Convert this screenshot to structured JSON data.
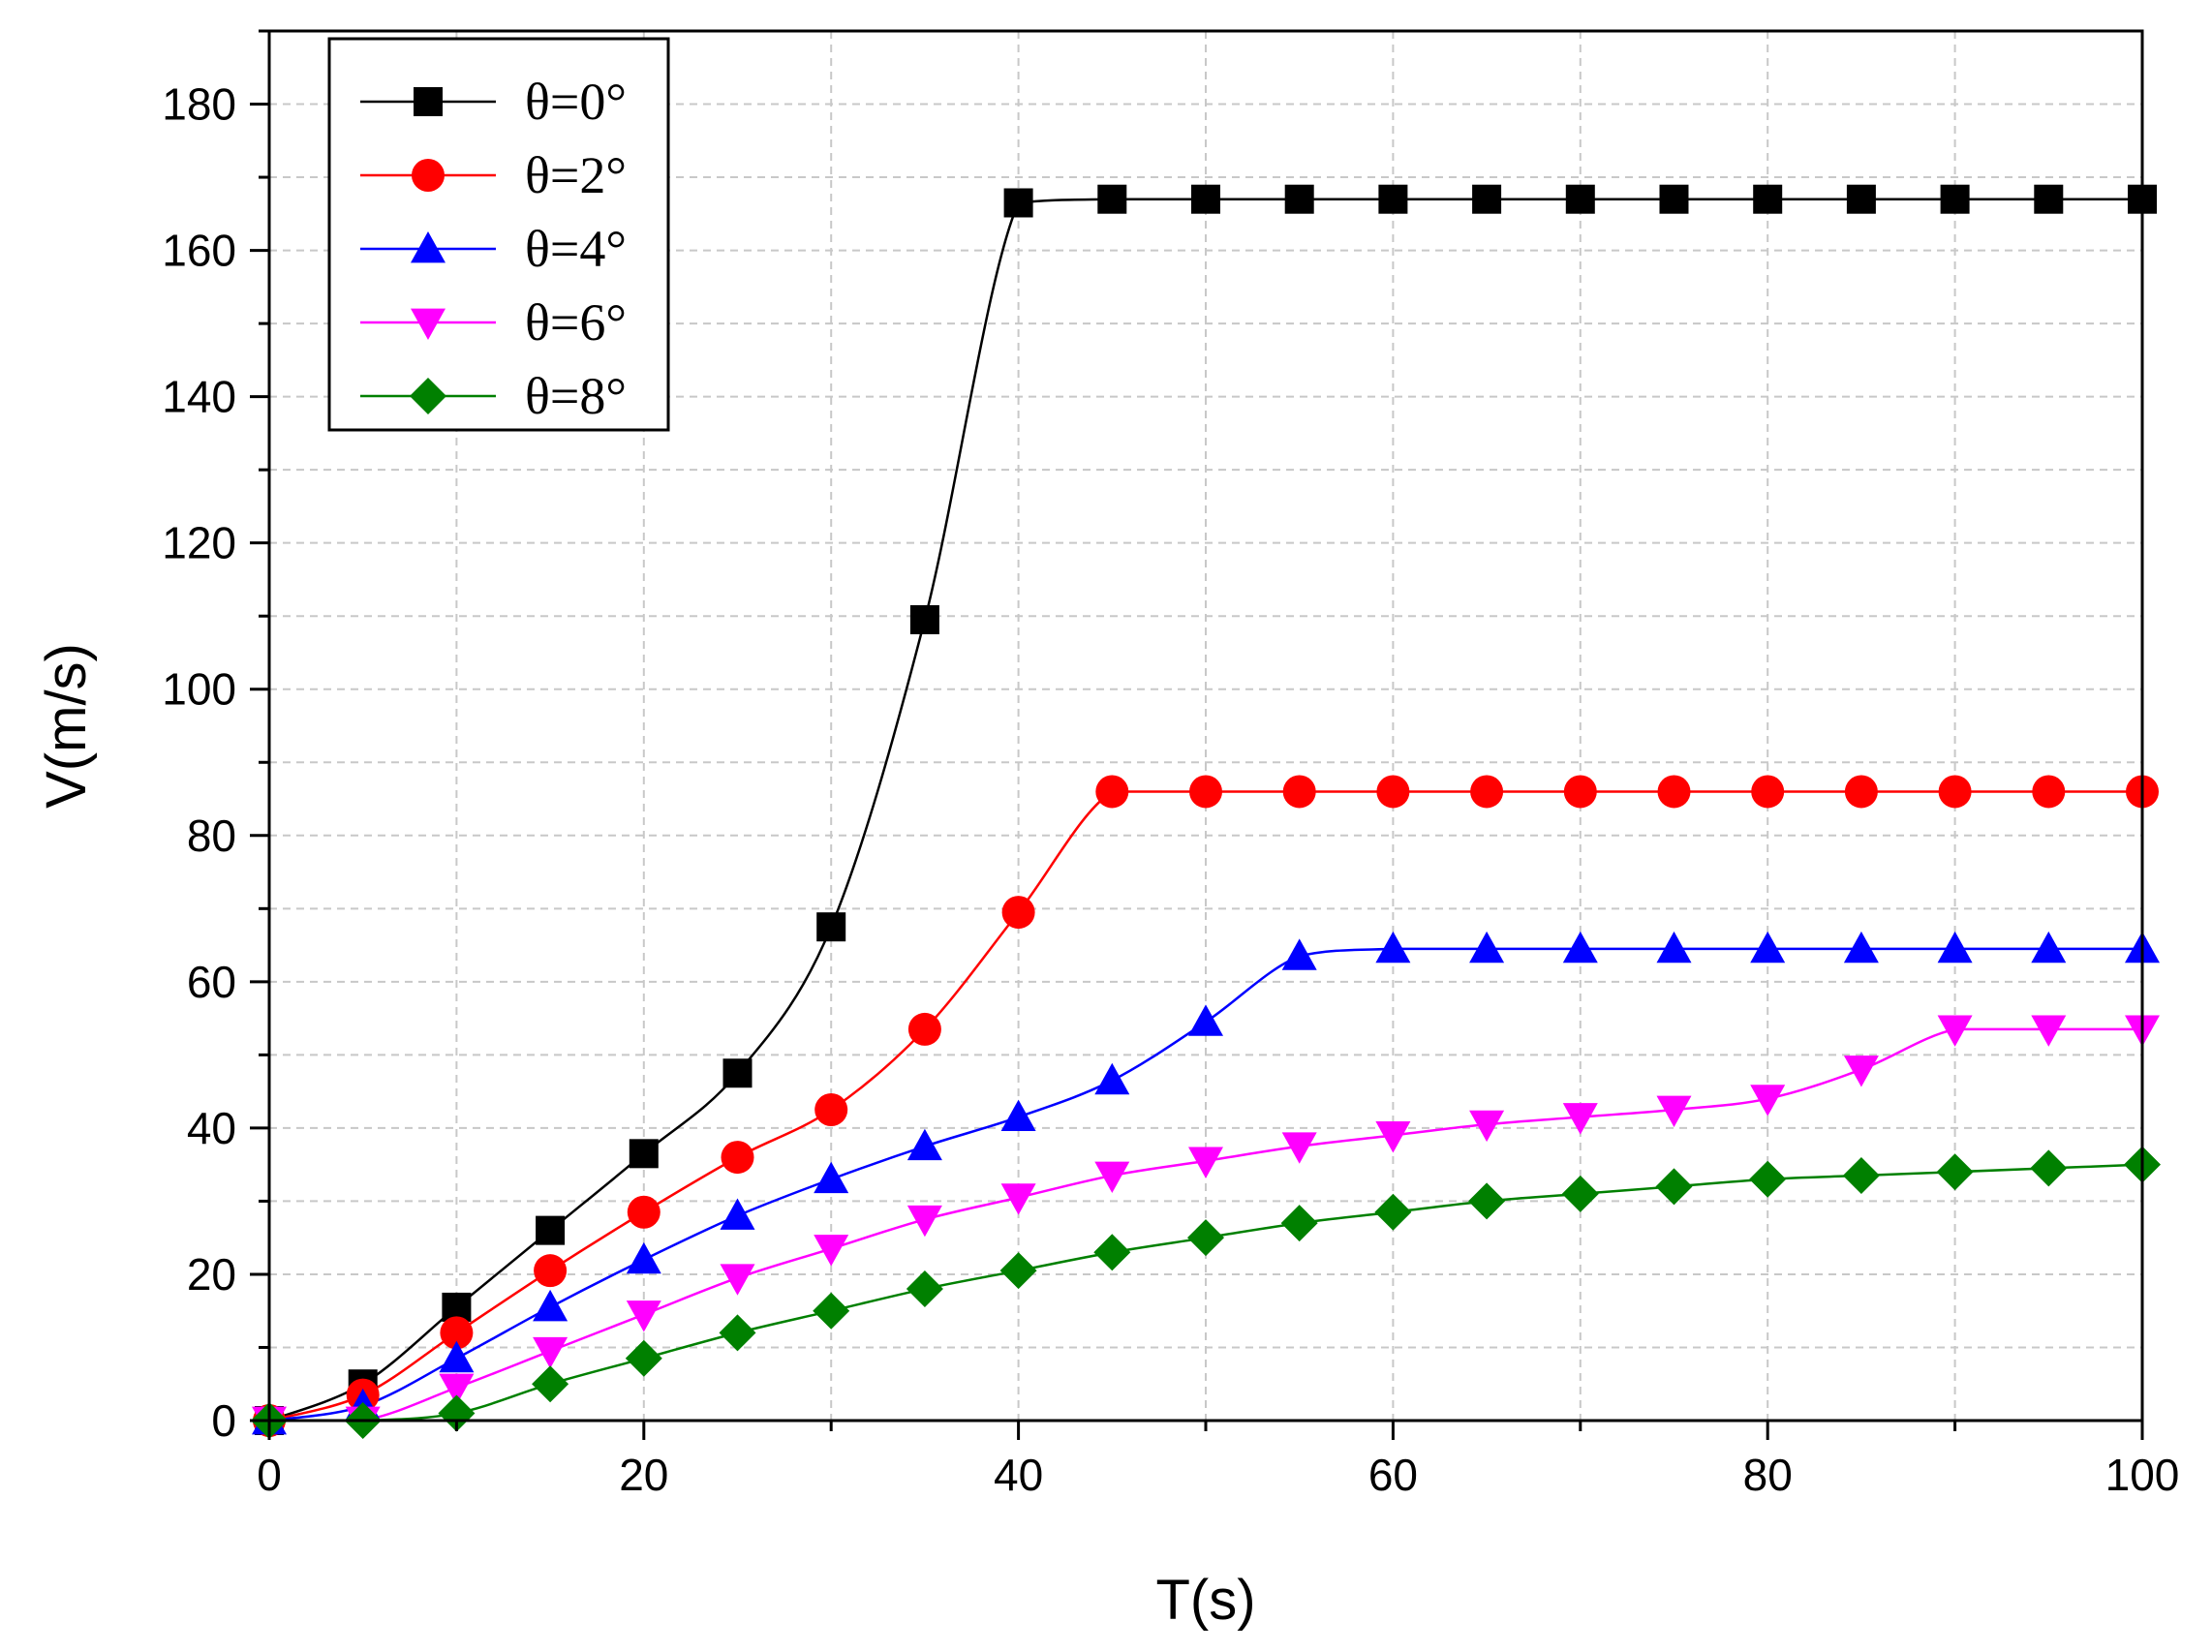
{
  "chart_data": {
    "type": "line",
    "title": "",
    "xlabel": "T(s)",
    "ylabel": "V(m/s)",
    "xlim": [
      0,
      100
    ],
    "ylim": [
      0,
      190
    ],
    "xticks": [
      0,
      20,
      40,
      60,
      80,
      100
    ],
    "yticks": [
      0,
      20,
      40,
      60,
      80,
      100,
      120,
      140,
      160,
      180
    ],
    "grid": true,
    "legend_position": "top-left",
    "x": [
      0,
      5,
      10,
      15,
      20,
      25,
      30,
      35,
      40,
      45,
      50,
      55,
      60,
      65,
      70,
      75,
      80,
      85,
      90,
      95,
      100
    ],
    "series": [
      {
        "name": "θ=0°",
        "color": "#000000",
        "marker": "square",
        "values": [
          0,
          5,
          15.5,
          26,
          36.5,
          47.5,
          67.5,
          109.5,
          166.5,
          167,
          167,
          167,
          167,
          167,
          167,
          167,
          167,
          167,
          167,
          167,
          167
        ]
      },
      {
        "name": "θ=2°",
        "color": "#ff0000",
        "marker": "circle",
        "values": [
          0,
          3.5,
          12,
          20.5,
          28.5,
          36,
          42.5,
          53.5,
          69.5,
          86,
          86,
          86,
          86,
          86,
          86,
          86,
          86,
          86,
          86,
          86,
          86
        ]
      },
      {
        "name": "θ=4°",
        "color": "#0000ff",
        "marker": "triangle-up",
        "values": [
          0,
          2,
          8.5,
          15.5,
          22,
          28,
          33,
          37.5,
          41.5,
          46.5,
          54.5,
          63.5,
          64.5,
          64.5,
          64.5,
          64.5,
          64.5,
          64.5,
          64.5,
          64.5,
          64.5
        ]
      },
      {
        "name": "θ=6°",
        "color": "#ff00ff",
        "marker": "triangle-down",
        "values": [
          0,
          0,
          4.5,
          9.5,
          14.5,
          19.5,
          23.5,
          27.5,
          30.5,
          33.5,
          35.5,
          37.5,
          39,
          40.5,
          41.5,
          42.5,
          44,
          48,
          53.5,
          53.5,
          53.5
        ]
      },
      {
        "name": "θ=8°",
        "color": "#008000",
        "marker": "diamond",
        "values": [
          0,
          0,
          1,
          5,
          8.5,
          12,
          15,
          18,
          20.5,
          23,
          25,
          27,
          28.5,
          30,
          31,
          32,
          33,
          33.5,
          34,
          34.5,
          35
        ]
      }
    ]
  }
}
